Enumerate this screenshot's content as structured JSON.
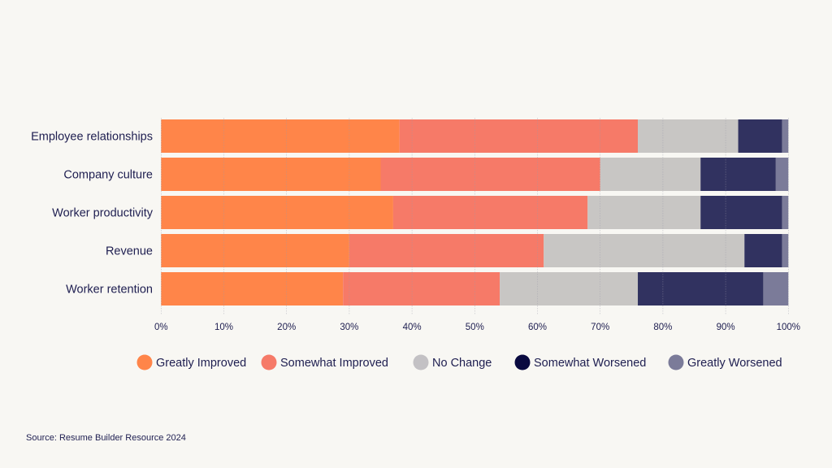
{
  "chart_data": {
    "type": "bar",
    "orientation": "horizontal",
    "stacked": true,
    "categories": [
      "Employee relationships",
      "Company culture",
      "Worker productivity",
      "Revenue",
      "Worker retention"
    ],
    "series": [
      {
        "name": "Greatly Improved",
        "color": "#ff8549",
        "values": [
          38,
          35,
          37,
          30,
          29
        ]
      },
      {
        "name": "Somewhat Improved",
        "color": "#f67a68",
        "values": [
          38,
          35,
          31,
          31,
          25
        ]
      },
      {
        "name": "No Change",
        "color": "#c8c6c4",
        "values": [
          16,
          16,
          18,
          32,
          22
        ]
      },
      {
        "name": "Somewhat Worsened",
        "color": "#313260",
        "values": [
          7,
          12,
          13,
          6,
          20
        ]
      },
      {
        "name": "Greatly Worsened",
        "color": "#7b7b99",
        "values": [
          1,
          2,
          1,
          1,
          4
        ]
      }
    ],
    "legend_colors": [
      "#ff8549",
      "#f67a68",
      "#c3c1c4",
      "#0a0a40",
      "#7b7b99"
    ],
    "xlim": [
      0,
      100
    ],
    "xticks": [
      "0%",
      "10%",
      "20%",
      "30%",
      "40%",
      "50%",
      "60%",
      "70%",
      "80%",
      "90%",
      "100%"
    ],
    "grid": true,
    "legend_position": "bottom"
  },
  "source": "Source: Resume Builder Resource 2024"
}
